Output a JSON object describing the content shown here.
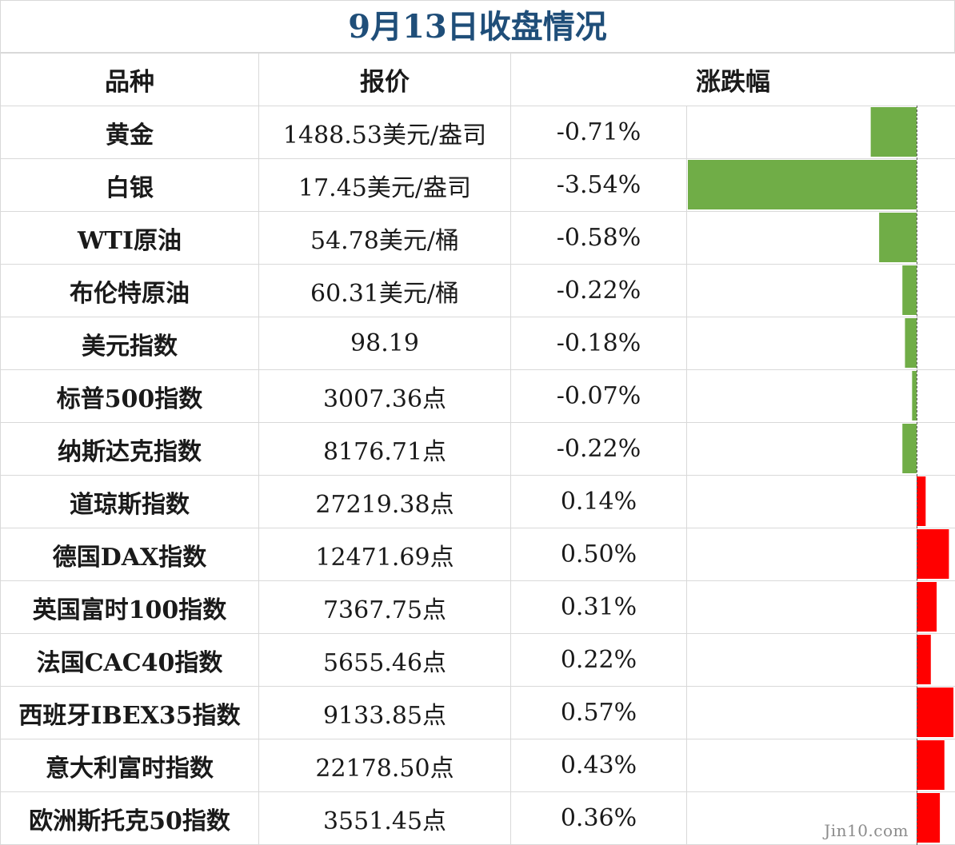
{
  "title": "9月13日收盘情况",
  "headers": {
    "name": "品种",
    "price": "报价",
    "change": "涨跌幅"
  },
  "watermark": "Jin10.com",
  "colors": {
    "negative": "#70ad47",
    "positive": "#ff0000",
    "title": "#1f4e79"
  },
  "rows": [
    {
      "name": "黄金",
      "price": "1488.53美元/盎司",
      "change": "-0.71%"
    },
    {
      "name": "白银",
      "price": "17.45美元/盎司",
      "change": "-3.54%"
    },
    {
      "name": "WTI原油",
      "price": "54.78美元/桶",
      "change": "-0.58%"
    },
    {
      "name": "布伦特原油",
      "price": "60.31美元/桶",
      "change": "-0.22%"
    },
    {
      "name": "美元指数",
      "price": "98.19",
      "change": "-0.18%"
    },
    {
      "name": "标普500指数",
      "price": "3007.36点",
      "change": "-0.07%"
    },
    {
      "name": "纳斯达克指数",
      "price": "8176.71点",
      "change": "-0.22%"
    },
    {
      "name": "道琼斯指数",
      "price": "27219.38点",
      "change": "0.14%"
    },
    {
      "name": "德国DAX指数",
      "price": "12471.69点",
      "change": "0.50%"
    },
    {
      "name": "英国富时100指数",
      "price": "7367.75点",
      "change": "0.31%"
    },
    {
      "name": "法国CAC40指数",
      "price": "5655.46点",
      "change": "0.22%"
    },
    {
      "name": "西班牙IBEX35指数",
      "price": "9133.85点",
      "change": "0.57%"
    },
    {
      "name": "意大利富时指数",
      "price": "22178.50点",
      "change": "0.43%"
    },
    {
      "name": "欧洲斯托克50指数",
      "price": "3551.45点",
      "change": "0.36%"
    }
  ],
  "chart_data": {
    "type": "bar",
    "orientation": "horizontal",
    "categories": [
      "黄金",
      "白银",
      "WTI原油",
      "布伦特原油",
      "美元指数",
      "标普500指数",
      "纳斯达克指数",
      "道琼斯指数",
      "德国DAX指数",
      "英国富时100指数",
      "法国CAC40指数",
      "西班牙IBEX35指数",
      "意大利富时指数",
      "欧洲斯托克50指数"
    ],
    "values": [
      -0.71,
      -3.54,
      -0.58,
      -0.22,
      -0.18,
      -0.07,
      -0.22,
      0.14,
      0.5,
      0.31,
      0.22,
      0.57,
      0.43,
      0.36
    ],
    "unit": "%",
    "title": "9月13日收盘情况"
  }
}
